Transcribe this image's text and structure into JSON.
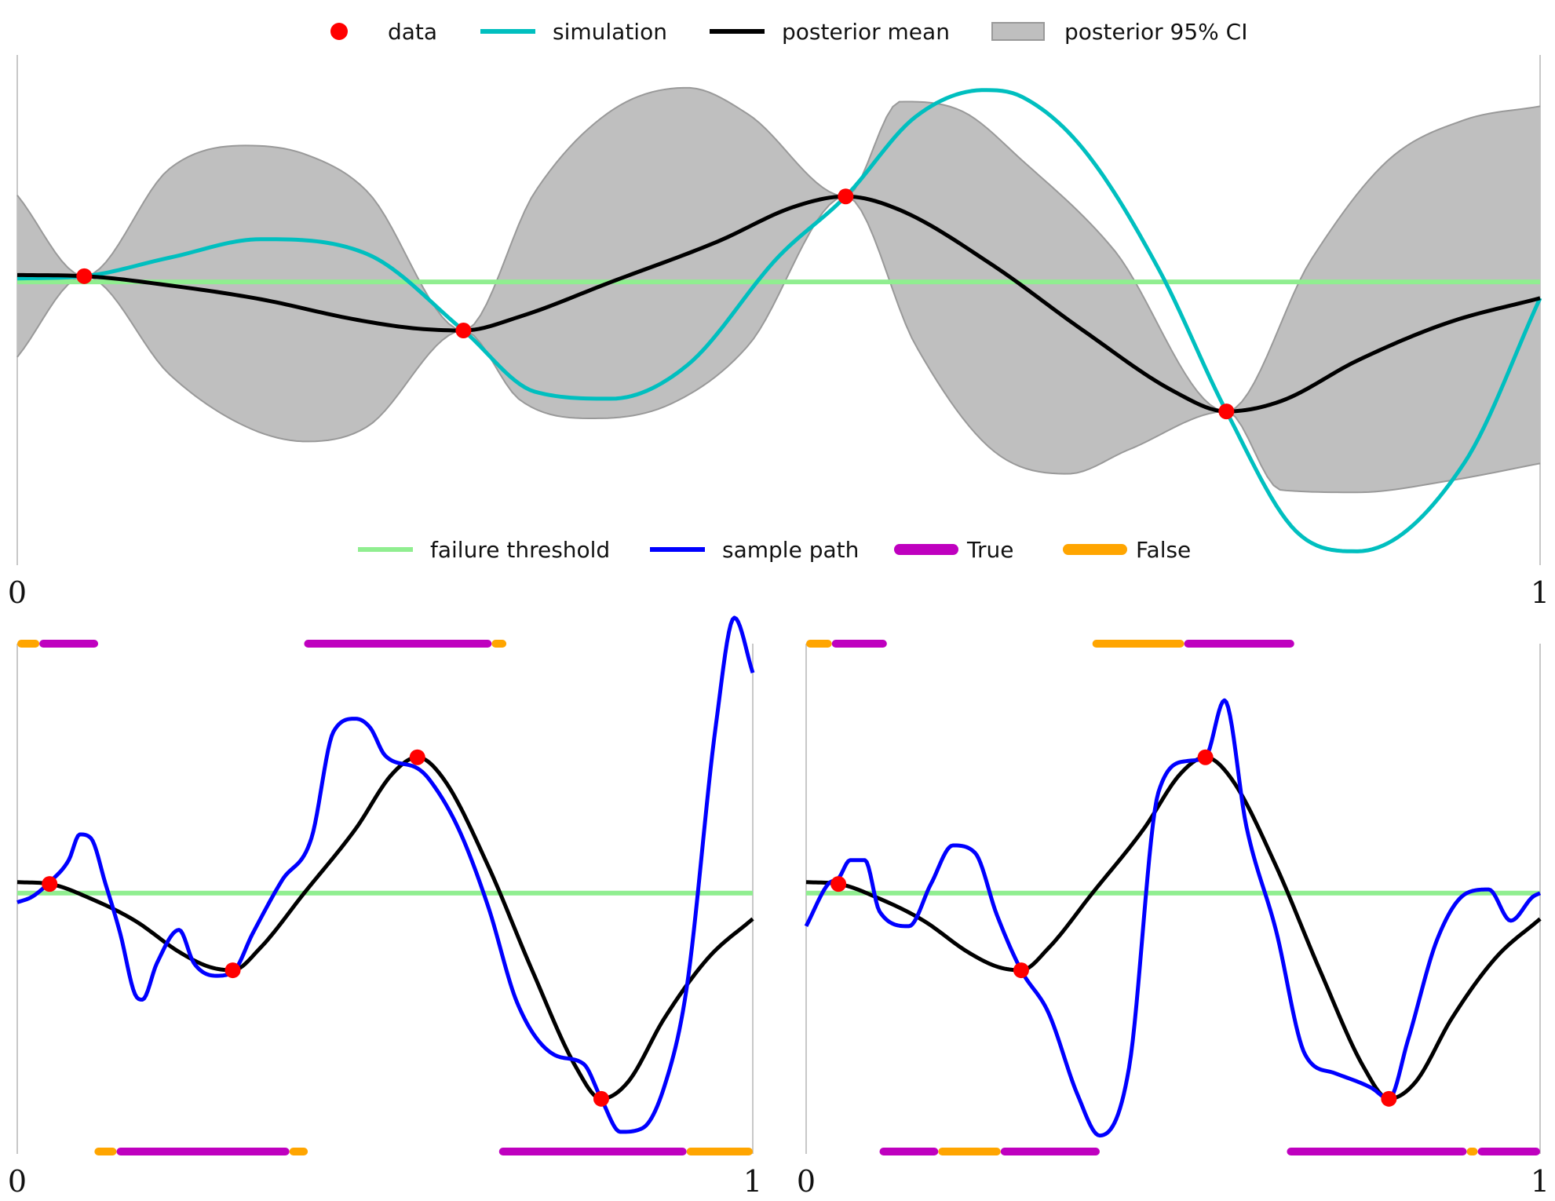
{
  "chart_data": [
    {
      "type": "line",
      "panel": "top",
      "xlim": [
        0,
        1
      ],
      "x_ticks": [
        "0",
        "1"
      ],
      "grid": false,
      "legends": {
        "upper": {
          "placement": "top-center",
          "entries": [
            {
              "label": "data",
              "kind": "marker",
              "color": "#ff0000"
            },
            {
              "label": "simulation",
              "kind": "line",
              "color": "#00bfbf"
            },
            {
              "label": "posterior mean",
              "kind": "line",
              "color": "#000000"
            },
            {
              "label": "posterior 95% CI",
              "kind": "patch",
              "color": "#bfbfbf"
            }
          ]
        },
        "lower": {
          "placement": "bottom-center",
          "entries": [
            {
              "label": "failure threshold",
              "kind": "line",
              "color": "#90ee90"
            },
            {
              "label": "sample path",
              "kind": "line",
              "color": "#0000ff"
            },
            {
              "label": "True",
              "kind": "thick",
              "color": "#bf00bf"
            },
            {
              "label": "False",
              "kind": "thick",
              "color": "#ffa500"
            }
          ]
        }
      },
      "data_points": {
        "x": [
          0.044,
          0.293,
          0.544,
          0.794
        ],
        "y": [
          0.05,
          -0.42,
          0.74,
          -1.12
        ]
      },
      "threshold": 0.0,
      "simulation": {
        "x": [
          0,
          0.044,
          0.1,
          0.16,
          0.23,
          0.293,
          0.34,
          0.39,
          0.44,
          0.5,
          0.544,
          0.59,
          0.635,
          0.66,
          0.7,
          0.75,
          0.794,
          0.84,
          0.88,
          0.95,
          1.0
        ],
        "y": [
          0.03,
          0.05,
          0.21,
          0.37,
          0.24,
          -0.42,
          -0.95,
          -1.01,
          -0.72,
          0.22,
          0.74,
          1.43,
          1.66,
          1.6,
          1.15,
          0.1,
          -1.12,
          -2.16,
          -2.33,
          -1.57,
          -0.14
        ]
      },
      "posterior_mean": {
        "x": [
          0,
          0.044,
          0.1,
          0.16,
          0.22,
          0.26,
          0.293,
          0.33,
          0.39,
          0.46,
          0.51,
          0.544,
          0.58,
          0.64,
          0.7,
          0.76,
          0.794,
          0.83,
          0.88,
          0.94,
          1.0
        ],
        "y": [
          0.06,
          0.05,
          -0.03,
          -0.15,
          -0.32,
          -0.4,
          -0.42,
          -0.3,
          0.0,
          0.35,
          0.65,
          0.74,
          0.62,
          0.15,
          -0.42,
          -0.95,
          -1.12,
          -1.03,
          -0.68,
          -0.35,
          -0.14
        ]
      },
      "ci_lower": {
        "x": [
          0,
          0.044,
          0.1,
          0.15,
          0.19,
          0.23,
          0.293,
          0.33,
          0.38,
          0.43,
          0.48,
          0.544,
          0.59,
          0.64,
          0.69,
          0.73,
          0.794,
          0.83,
          0.88,
          0.94,
          1.0
        ],
        "y": [
          -0.65,
          0.05,
          -0.8,
          -1.25,
          -1.38,
          -1.25,
          -0.42,
          -1.02,
          -1.18,
          -1.05,
          -0.55,
          0.74,
          -0.55,
          -1.45,
          -1.66,
          -1.45,
          -1.12,
          -1.8,
          -1.82,
          -1.72,
          -1.57
        ]
      },
      "ci_upper": {
        "x": [
          0,
          0.044,
          0.1,
          0.15,
          0.19,
          0.23,
          0.293,
          0.34,
          0.39,
          0.44,
          0.48,
          0.544,
          0.58,
          0.62,
          0.66,
          0.72,
          0.794,
          0.85,
          0.9,
          0.95,
          1.0
        ],
        "y": [
          0.75,
          0.05,
          0.98,
          1.18,
          1.1,
          0.78,
          -0.42,
          0.78,
          1.48,
          1.68,
          1.45,
          0.74,
          1.56,
          1.48,
          1.05,
          0.28,
          -1.12,
          0.2,
          1.05,
          1.4,
          1.52
        ]
      },
      "ylim": [
        -2.45,
        1.95
      ]
    },
    {
      "type": "line",
      "panel": "bottom-left",
      "xlim": [
        0,
        1
      ],
      "x_ticks": [
        "0",
        "1"
      ],
      "grid": false,
      "data_points": {
        "x": [
          0.044,
          0.293,
          0.544,
          0.794
        ],
        "y": [
          0.05,
          -0.42,
          0.74,
          -1.12
        ]
      },
      "threshold": 0.0,
      "sample_path": {
        "x": [
          0,
          0.02,
          0.044,
          0.07,
          0.085,
          0.1,
          0.12,
          0.14,
          0.16,
          0.17,
          0.19,
          0.22,
          0.24,
          0.27,
          0.293,
          0.32,
          0.36,
          0.4,
          0.43,
          0.46,
          0.48,
          0.5,
          0.544,
          0.56,
          0.6,
          0.64,
          0.68,
          0.73,
          0.77,
          0.794,
          0.82,
          0.85,
          0.88,
          0.91,
          0.95,
          0.975,
          1.0
        ],
        "y": [
          -0.05,
          -0.02,
          0.06,
          0.18,
          0.32,
          0.3,
          0.05,
          -0.22,
          -0.55,
          -0.58,
          -0.38,
          -0.2,
          -0.38,
          -0.45,
          -0.43,
          -0.22,
          0.07,
          0.3,
          0.88,
          0.95,
          0.9,
          0.75,
          0.68,
          0.62,
          0.35,
          -0.07,
          -0.6,
          -0.88,
          -0.93,
          -1.12,
          -1.3,
          -1.28,
          -1.05,
          -0.52,
          0.92,
          1.5,
          1.2
        ]
      },
      "indicators_top": [
        {
          "start": 0.0,
          "end": 0.03,
          "class": "False"
        },
        {
          "start": 0.03,
          "end": 0.11,
          "class": "True"
        },
        {
          "start": 0.39,
          "end": 0.645,
          "class": "True"
        },
        {
          "start": 0.645,
          "end": 0.665,
          "class": "False"
        }
      ],
      "indicators_bottom": [
        {
          "start": 0.105,
          "end": 0.135,
          "class": "False"
        },
        {
          "start": 0.135,
          "end": 0.37,
          "class": "True"
        },
        {
          "start": 0.37,
          "end": 0.395,
          "class": "False"
        },
        {
          "start": 0.655,
          "end": 0.91,
          "class": "True"
        },
        {
          "start": 0.91,
          "end": 1.0,
          "class": "False"
        }
      ],
      "ylim": [
        -1.42,
        1.35
      ]
    },
    {
      "type": "line",
      "panel": "bottom-right",
      "xlim": [
        0,
        1
      ],
      "x_ticks": [
        "0",
        "1"
      ],
      "grid": false,
      "data_points": {
        "x": [
          0.044,
          0.293,
          0.544,
          0.794
        ],
        "y": [
          0.05,
          -0.42,
          0.74,
          -1.12
        ]
      },
      "threshold": 0.0,
      "sample_path": {
        "x": [
          0,
          0.03,
          0.044,
          0.06,
          0.08,
          0.1,
          0.14,
          0.17,
          0.2,
          0.23,
          0.26,
          0.293,
          0.33,
          0.37,
          0.4,
          0.44,
          0.48,
          0.52,
          0.544,
          0.57,
          0.6,
          0.64,
          0.68,
          0.72,
          0.77,
          0.794,
          0.82,
          0.86,
          0.9,
          0.93,
          0.96,
          0.99,
          1.0
        ],
        "y": [
          -0.18,
          0.05,
          0.08,
          0.18,
          0.18,
          -0.1,
          -0.18,
          0.05,
          0.26,
          0.22,
          -0.12,
          -0.42,
          -0.65,
          -1.1,
          -1.32,
          -0.95,
          0.55,
          0.72,
          0.74,
          1.05,
          0.36,
          -0.2,
          -0.88,
          -0.98,
          -1.06,
          -1.12,
          -0.8,
          -0.25,
          0.0,
          0.02,
          -0.15,
          -0.02,
          0.0
        ]
      },
      "indicators_top": [
        {
          "start": 0.0,
          "end": 0.035,
          "class": "False"
        },
        {
          "start": 0.035,
          "end": 0.11,
          "class": "True"
        },
        {
          "start": 0.39,
          "end": 0.515,
          "class": "False"
        },
        {
          "start": 0.515,
          "end": 0.665,
          "class": "True"
        }
      ],
      "indicators_bottom": [
        {
          "start": 0.1,
          "end": 0.18,
          "class": "True"
        },
        {
          "start": 0.18,
          "end": 0.265,
          "class": "False"
        },
        {
          "start": 0.265,
          "end": 0.4,
          "class": "True"
        },
        {
          "start": 0.655,
          "end": 0.9,
          "class": "True"
        },
        {
          "start": 0.9,
          "end": 0.915,
          "class": "False"
        },
        {
          "start": 0.915,
          "end": 1.0,
          "class": "True"
        }
      ],
      "ylim": [
        -1.42,
        1.35
      ]
    }
  ]
}
